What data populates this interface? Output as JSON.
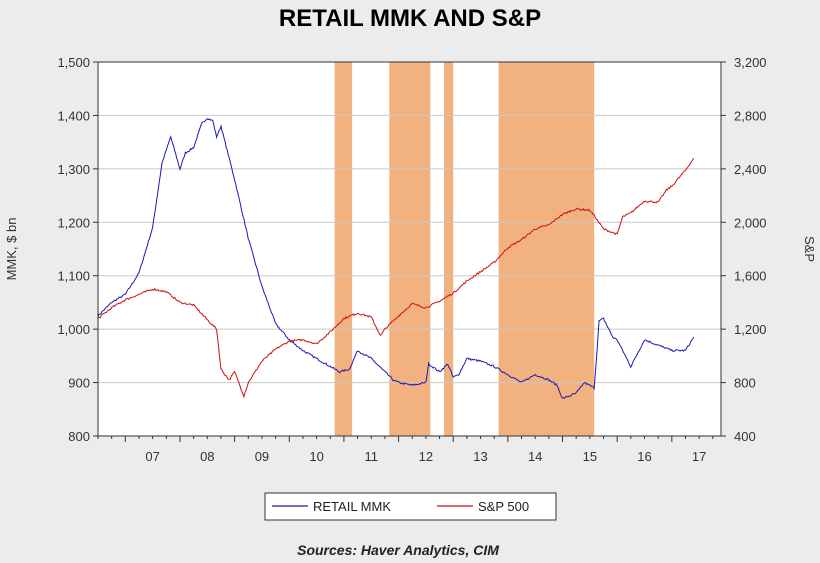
{
  "chart_data": {
    "type": "line",
    "title": "RETAIL MMK AND S&P",
    "ylabel": "MMK, $ bn",
    "y2label": "S&P",
    "source": "Sources:  Haver Analytics, CIM",
    "x_range": [
      2006.5,
      2017.9
    ],
    "x_tick_labels": [
      "07",
      "08",
      "09",
      "10",
      "11",
      "12",
      "13",
      "14",
      "15",
      "16",
      "17"
    ],
    "x_tick_years": [
      2007,
      2008,
      2009,
      2010,
      2011,
      2012,
      2013,
      2014,
      2015,
      2016,
      2017
    ],
    "ylim_left": [
      800,
      1500
    ],
    "y_ticks_left": [
      "800",
      "900",
      "1,000",
      "1,100",
      "1,200",
      "1,300",
      "1,400",
      "1,500"
    ],
    "ylim_right": [
      400,
      3200
    ],
    "y_ticks_right": [
      "400",
      "800",
      "1,200",
      "1,600",
      "2,000",
      "2,400",
      "2,800",
      "3,200"
    ],
    "grid": true,
    "legend_position": "bottom",
    "shaded_periods": [
      {
        "start": 2010.83,
        "end": 2011.15
      },
      {
        "start": 2011.83,
        "end": 2012.58
      },
      {
        "start": 2012.83,
        "end": 2013.0
      },
      {
        "start": 2013.83,
        "end": 2015.58
      }
    ],
    "shade_color": "#f2b27f",
    "series": [
      {
        "name": "RETAIL MMK",
        "axis": "left",
        "color": "#1a1ab4",
        "x": [
          2006.5,
          2006.75,
          2007.0,
          2007.25,
          2007.5,
          2007.67,
          2007.83,
          2008.0,
          2008.1,
          2008.25,
          2008.4,
          2008.5,
          2008.6,
          2008.67,
          2008.75,
          2009.0,
          2009.25,
          2009.5,
          2009.75,
          2010.0,
          2010.25,
          2010.5,
          2010.75,
          2010.92,
          2011.1,
          2011.25,
          2011.5,
          2011.75,
          2011.9,
          2012.0,
          2012.25,
          2012.5,
          2012.55,
          2012.75,
          2012.9,
          2013.0,
          2013.1,
          2013.25,
          2013.5,
          2013.75,
          2014.0,
          2014.25,
          2014.5,
          2014.75,
          2014.9,
          2015.0,
          2015.25,
          2015.4,
          2015.58,
          2015.67,
          2015.75,
          2015.92,
          2016.0,
          2016.25,
          2016.5,
          2016.75,
          2017.0,
          2017.25,
          2017.4
        ],
        "values": [
          1025,
          1050,
          1065,
          1105,
          1190,
          1310,
          1360,
          1300,
          1330,
          1340,
          1385,
          1395,
          1390,
          1360,
          1380,
          1280,
          1170,
          1080,
          1010,
          980,
          960,
          945,
          930,
          920,
          925,
          960,
          945,
          920,
          905,
          900,
          895,
          900,
          935,
          920,
          935,
          910,
          915,
          945,
          940,
          930,
          915,
          900,
          915,
          905,
          895,
          870,
          880,
          900,
          890,
          1015,
          1020,
          985,
          980,
          930,
          980,
          970,
          960,
          960,
          985
        ]
      },
      {
        "name": "S&P 500",
        "axis": "right",
        "color": "#cc1111",
        "x": [
          2006.5,
          2006.75,
          2007.0,
          2007.25,
          2007.5,
          2007.75,
          2008.0,
          2008.25,
          2008.5,
          2008.67,
          2008.75,
          2008.9,
          2009.0,
          2009.17,
          2009.25,
          2009.5,
          2009.75,
          2010.0,
          2010.25,
          2010.5,
          2010.75,
          2011.0,
          2011.25,
          2011.5,
          2011.67,
          2011.75,
          2012.0,
          2012.25,
          2012.5,
          2012.75,
          2013.0,
          2013.25,
          2013.5,
          2013.75,
          2014.0,
          2014.25,
          2014.5,
          2014.75,
          2015.0,
          2015.25,
          2015.5,
          2015.58,
          2015.75,
          2016.0,
          2016.1,
          2016.25,
          2016.5,
          2016.75,
          2016.9,
          2017.0,
          2017.25,
          2017.4
        ],
        "values": [
          1280,
          1360,
          1420,
          1460,
          1500,
          1480,
          1400,
          1380,
          1270,
          1200,
          900,
          820,
          880,
          700,
          800,
          960,
          1050,
          1110,
          1120,
          1090,
          1180,
          1280,
          1320,
          1290,
          1150,
          1200,
          1300,
          1390,
          1360,
          1410,
          1470,
          1560,
          1630,
          1700,
          1810,
          1870,
          1950,
          1980,
          2060,
          2100,
          2090,
          2050,
          1950,
          1910,
          2040,
          2070,
          2160,
          2150,
          2240,
          2270,
          2390,
          2480
        ]
      }
    ]
  },
  "legend": {
    "items": [
      {
        "label": "RETAIL MMK",
        "color": "#1a1ab4"
      },
      {
        "label": "S&P 500",
        "color": "#cc1111"
      }
    ]
  }
}
